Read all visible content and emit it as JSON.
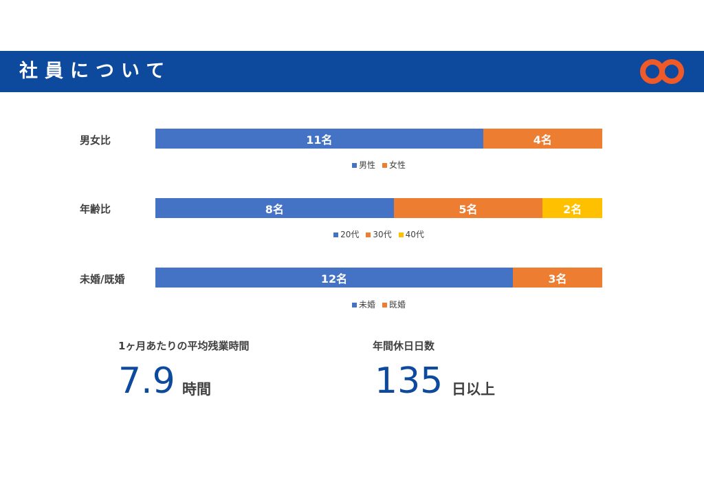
{
  "header": {
    "title": "社員について",
    "accent_color": "#0d4a9e",
    "logo_color": "#f05a28"
  },
  "chart_data": [
    {
      "type": "bar",
      "orientation": "horizontal-stacked",
      "label": "男女比",
      "segments": [
        {
          "name": "男性",
          "value": 11,
          "label": "11名",
          "color": "#4472c4"
        },
        {
          "name": "女性",
          "value": 4,
          "label": "4名",
          "color": "#ed7d31"
        }
      ]
    },
    {
      "type": "bar",
      "orientation": "horizontal-stacked",
      "label": "年齢比",
      "segments": [
        {
          "name": "20代",
          "value": 8,
          "label": "8名",
          "color": "#4472c4"
        },
        {
          "name": "30代",
          "value": 5,
          "label": "5名",
          "color": "#ed7d31"
        },
        {
          "name": "40代",
          "value": 2,
          "label": "2名",
          "color": "#ffc000"
        }
      ]
    },
    {
      "type": "bar",
      "orientation": "horizontal-stacked",
      "label": "未婚/既婚",
      "segments": [
        {
          "name": "未婚",
          "value": 12,
          "label": "12名",
          "color": "#4472c4"
        },
        {
          "name": "既婚",
          "value": 3,
          "label": "3名",
          "color": "#ed7d31"
        }
      ]
    }
  ],
  "stats": {
    "overtime": {
      "label": "1ヶ月あたりの平均残業時間",
      "value": "7.9",
      "unit": "時間"
    },
    "holidays": {
      "label": "年間休日日数",
      "value": "135",
      "unit": "日以上"
    }
  }
}
